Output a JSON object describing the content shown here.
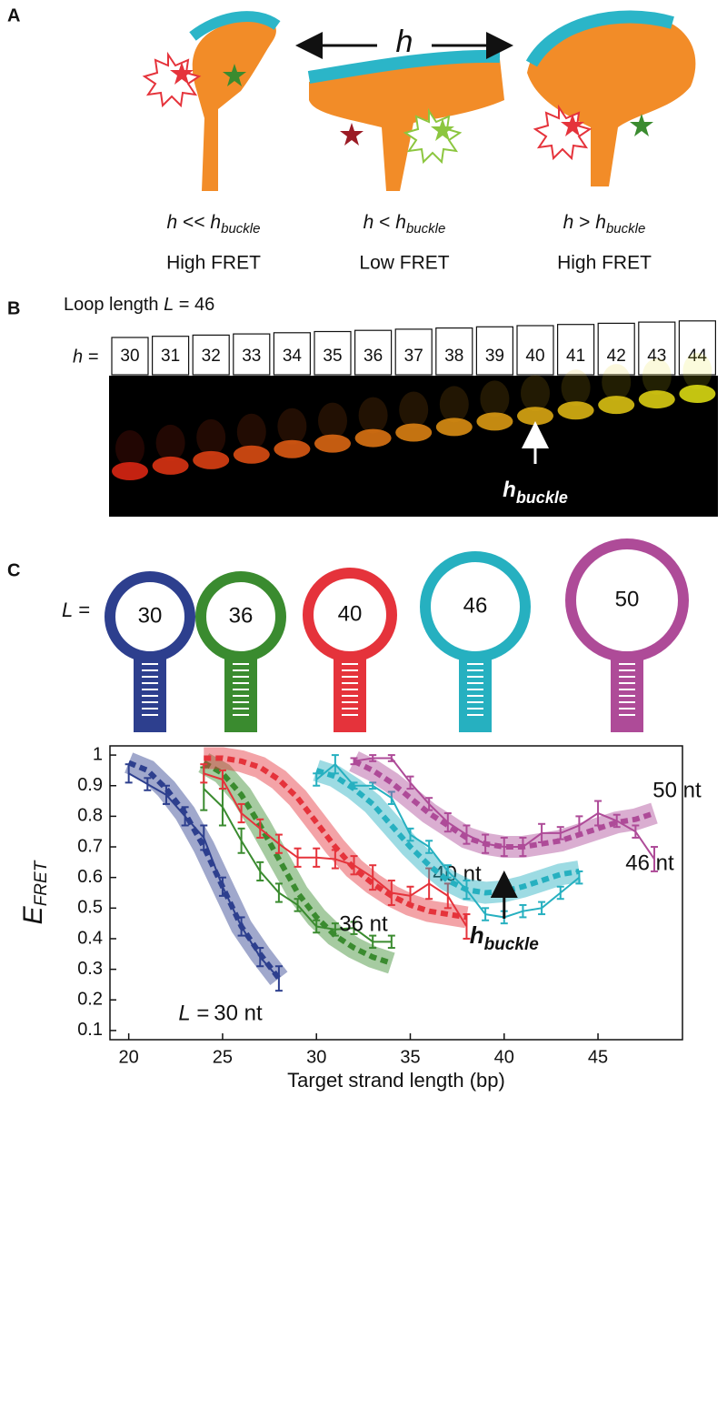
{
  "panel_a": {
    "label": "A",
    "arrow_label": "h",
    "captions": [
      {
        "var": "h",
        "rel": " << ",
        "var2": "h",
        "sub": "buckle",
        "fret": "High FRET"
      },
      {
        "var": "h",
        "rel": " < ",
        "var2": "h",
        "sub": "buckle",
        "fret": "Low FRET"
      },
      {
        "var": "h",
        "rel": " > ",
        "var2": "h",
        "sub": "buckle",
        "fret": "High FRET"
      }
    ]
  },
  "panel_b": {
    "label": "B",
    "loop_text": "Loop length ",
    "loop_var": "L",
    "loop_eq": " = 46",
    "h_label": "h =",
    "lanes": [
      30,
      31,
      32,
      33,
      34,
      35,
      36,
      37,
      38,
      39,
      40,
      41,
      42,
      43,
      44
    ],
    "buckle_var": "h",
    "buckle_sub": "buckle"
  },
  "panel_c": {
    "label": "C",
    "loops_prefix": "L =",
    "loops": [
      30,
      36,
      40,
      46,
      50
    ]
  },
  "chart_data": {
    "type": "line",
    "x_label": "Target strand length (bp)",
    "y_label": "E",
    "y_label_sub": "FRET",
    "xlim": [
      19,
      49.5
    ],
    "ylim": [
      0.07,
      1.03
    ],
    "xticks": [
      20,
      25,
      30,
      35,
      40,
      45
    ],
    "yticks": [
      0.1,
      0.2,
      0.3,
      0.4,
      0.5,
      0.6,
      0.7,
      0.8,
      0.9,
      1
    ],
    "series_prefix": "L =",
    "annotation": {
      "var": "h",
      "sub": "buckle",
      "x": 40
    },
    "series": [
      {
        "name": "30 nt",
        "color": "#2d3f8e",
        "x": [
          20,
          21,
          22,
          23,
          24,
          25,
          26,
          27,
          28
        ],
        "values": [
          0.94,
          0.905,
          0.87,
          0.8,
          0.73,
          0.57,
          0.44,
          0.34,
          0.27
        ],
        "errors": [
          0.03,
          0.02,
          0.03,
          0.03,
          0.04,
          0.03,
          0.03,
          0.03,
          0.04
        ],
        "fit_x": [
          20,
          21,
          22,
          23,
          24,
          25,
          26,
          27,
          28
        ],
        "fit_values": [
          0.975,
          0.95,
          0.89,
          0.81,
          0.7,
          0.57,
          0.44,
          0.35,
          0.27
        ]
      },
      {
        "name": "36 nt",
        "color": "#3a8b2f",
        "x": [
          24,
          25,
          26,
          27,
          28,
          29,
          30,
          31,
          32,
          33,
          34
        ],
        "values": [
          0.89,
          0.83,
          0.72,
          0.62,
          0.55,
          0.51,
          0.44,
          0.43,
          0.435,
          0.39,
          0.39
        ],
        "errors": [
          0.07,
          0.06,
          0.04,
          0.03,
          0.03,
          0.02,
          0.02,
          0.02,
          0.02,
          0.02,
          0.02
        ],
        "fit_x": [
          24,
          25,
          26,
          27,
          28,
          29,
          30,
          31,
          32,
          33,
          34
        ],
        "fit_values": [
          0.975,
          0.94,
          0.87,
          0.77,
          0.66,
          0.55,
          0.47,
          0.41,
          0.37,
          0.34,
          0.32
        ]
      },
      {
        "name": "40 nt",
        "color": "#e5333b",
        "x": [
          24,
          25,
          26,
          27,
          28,
          29,
          30,
          31,
          32,
          33,
          34,
          35,
          36,
          37,
          38
        ],
        "values": [
          0.94,
          0.92,
          0.81,
          0.76,
          0.71,
          0.665,
          0.665,
          0.66,
          0.64,
          0.6,
          0.55,
          0.54,
          0.58,
          0.54,
          0.44
        ],
        "errors": [
          0.03,
          0.03,
          0.03,
          0.03,
          0.03,
          0.03,
          0.03,
          0.03,
          0.03,
          0.04,
          0.04,
          0.03,
          0.05,
          0.04,
          0.04
        ],
        "fit_x": [
          24,
          25,
          26,
          27,
          28,
          29,
          30,
          31,
          32,
          33,
          34,
          35,
          36,
          37,
          38
        ],
        "fit_values": [
          0.99,
          0.99,
          0.98,
          0.96,
          0.92,
          0.86,
          0.78,
          0.7,
          0.63,
          0.58,
          0.54,
          0.51,
          0.49,
          0.48,
          0.47
        ]
      },
      {
        "name": "46 nt",
        "color": "#26b0c0",
        "x": [
          30,
          31,
          32,
          33,
          34,
          35,
          36,
          37,
          38,
          39,
          40,
          41,
          42,
          43,
          44
        ],
        "values": [
          0.92,
          0.97,
          0.9,
          0.9,
          0.86,
          0.74,
          0.7,
          0.62,
          0.56,
          0.48,
          0.47,
          0.49,
          0.5,
          0.55,
          0.6
        ],
        "errors": [
          0.02,
          0.03,
          0.01,
          0.01,
          0.02,
          0.02,
          0.02,
          0.02,
          0.03,
          0.02,
          0.02,
          0.02,
          0.02,
          0.02,
          0.02
        ],
        "fit_x": [
          30,
          31,
          32,
          33,
          34,
          35,
          36,
          37,
          38,
          39,
          40,
          41,
          42,
          43,
          44
        ],
        "fit_values": [
          0.95,
          0.93,
          0.89,
          0.84,
          0.77,
          0.7,
          0.64,
          0.59,
          0.56,
          0.55,
          0.555,
          0.57,
          0.59,
          0.61,
          0.62
        ]
      },
      {
        "name": "50 nt",
        "color": "#ae4b98",
        "x": [
          32,
          33,
          34,
          35,
          36,
          37,
          38,
          39,
          40,
          41,
          42,
          43,
          44,
          45,
          46,
          47,
          48
        ],
        "values": [
          0.98,
          0.99,
          0.99,
          0.91,
          0.84,
          0.78,
          0.74,
          0.71,
          0.7,
          0.7,
          0.745,
          0.745,
          0.77,
          0.81,
          0.785,
          0.75,
          0.66
        ],
        "errors": [
          0.01,
          0.01,
          0.01,
          0.02,
          0.02,
          0.03,
          0.03,
          0.03,
          0.03,
          0.03,
          0.03,
          0.02,
          0.03,
          0.04,
          0.02,
          0.02,
          0.04
        ],
        "fit_x": [
          32,
          33,
          34,
          35,
          36,
          37,
          38,
          39,
          40,
          41,
          42,
          43,
          44,
          45,
          46,
          47,
          48
        ],
        "fit_values": [
          0.98,
          0.95,
          0.91,
          0.86,
          0.81,
          0.77,
          0.73,
          0.71,
          0.7,
          0.7,
          0.71,
          0.72,
          0.74,
          0.76,
          0.78,
          0.79,
          0.81
        ]
      }
    ]
  }
}
